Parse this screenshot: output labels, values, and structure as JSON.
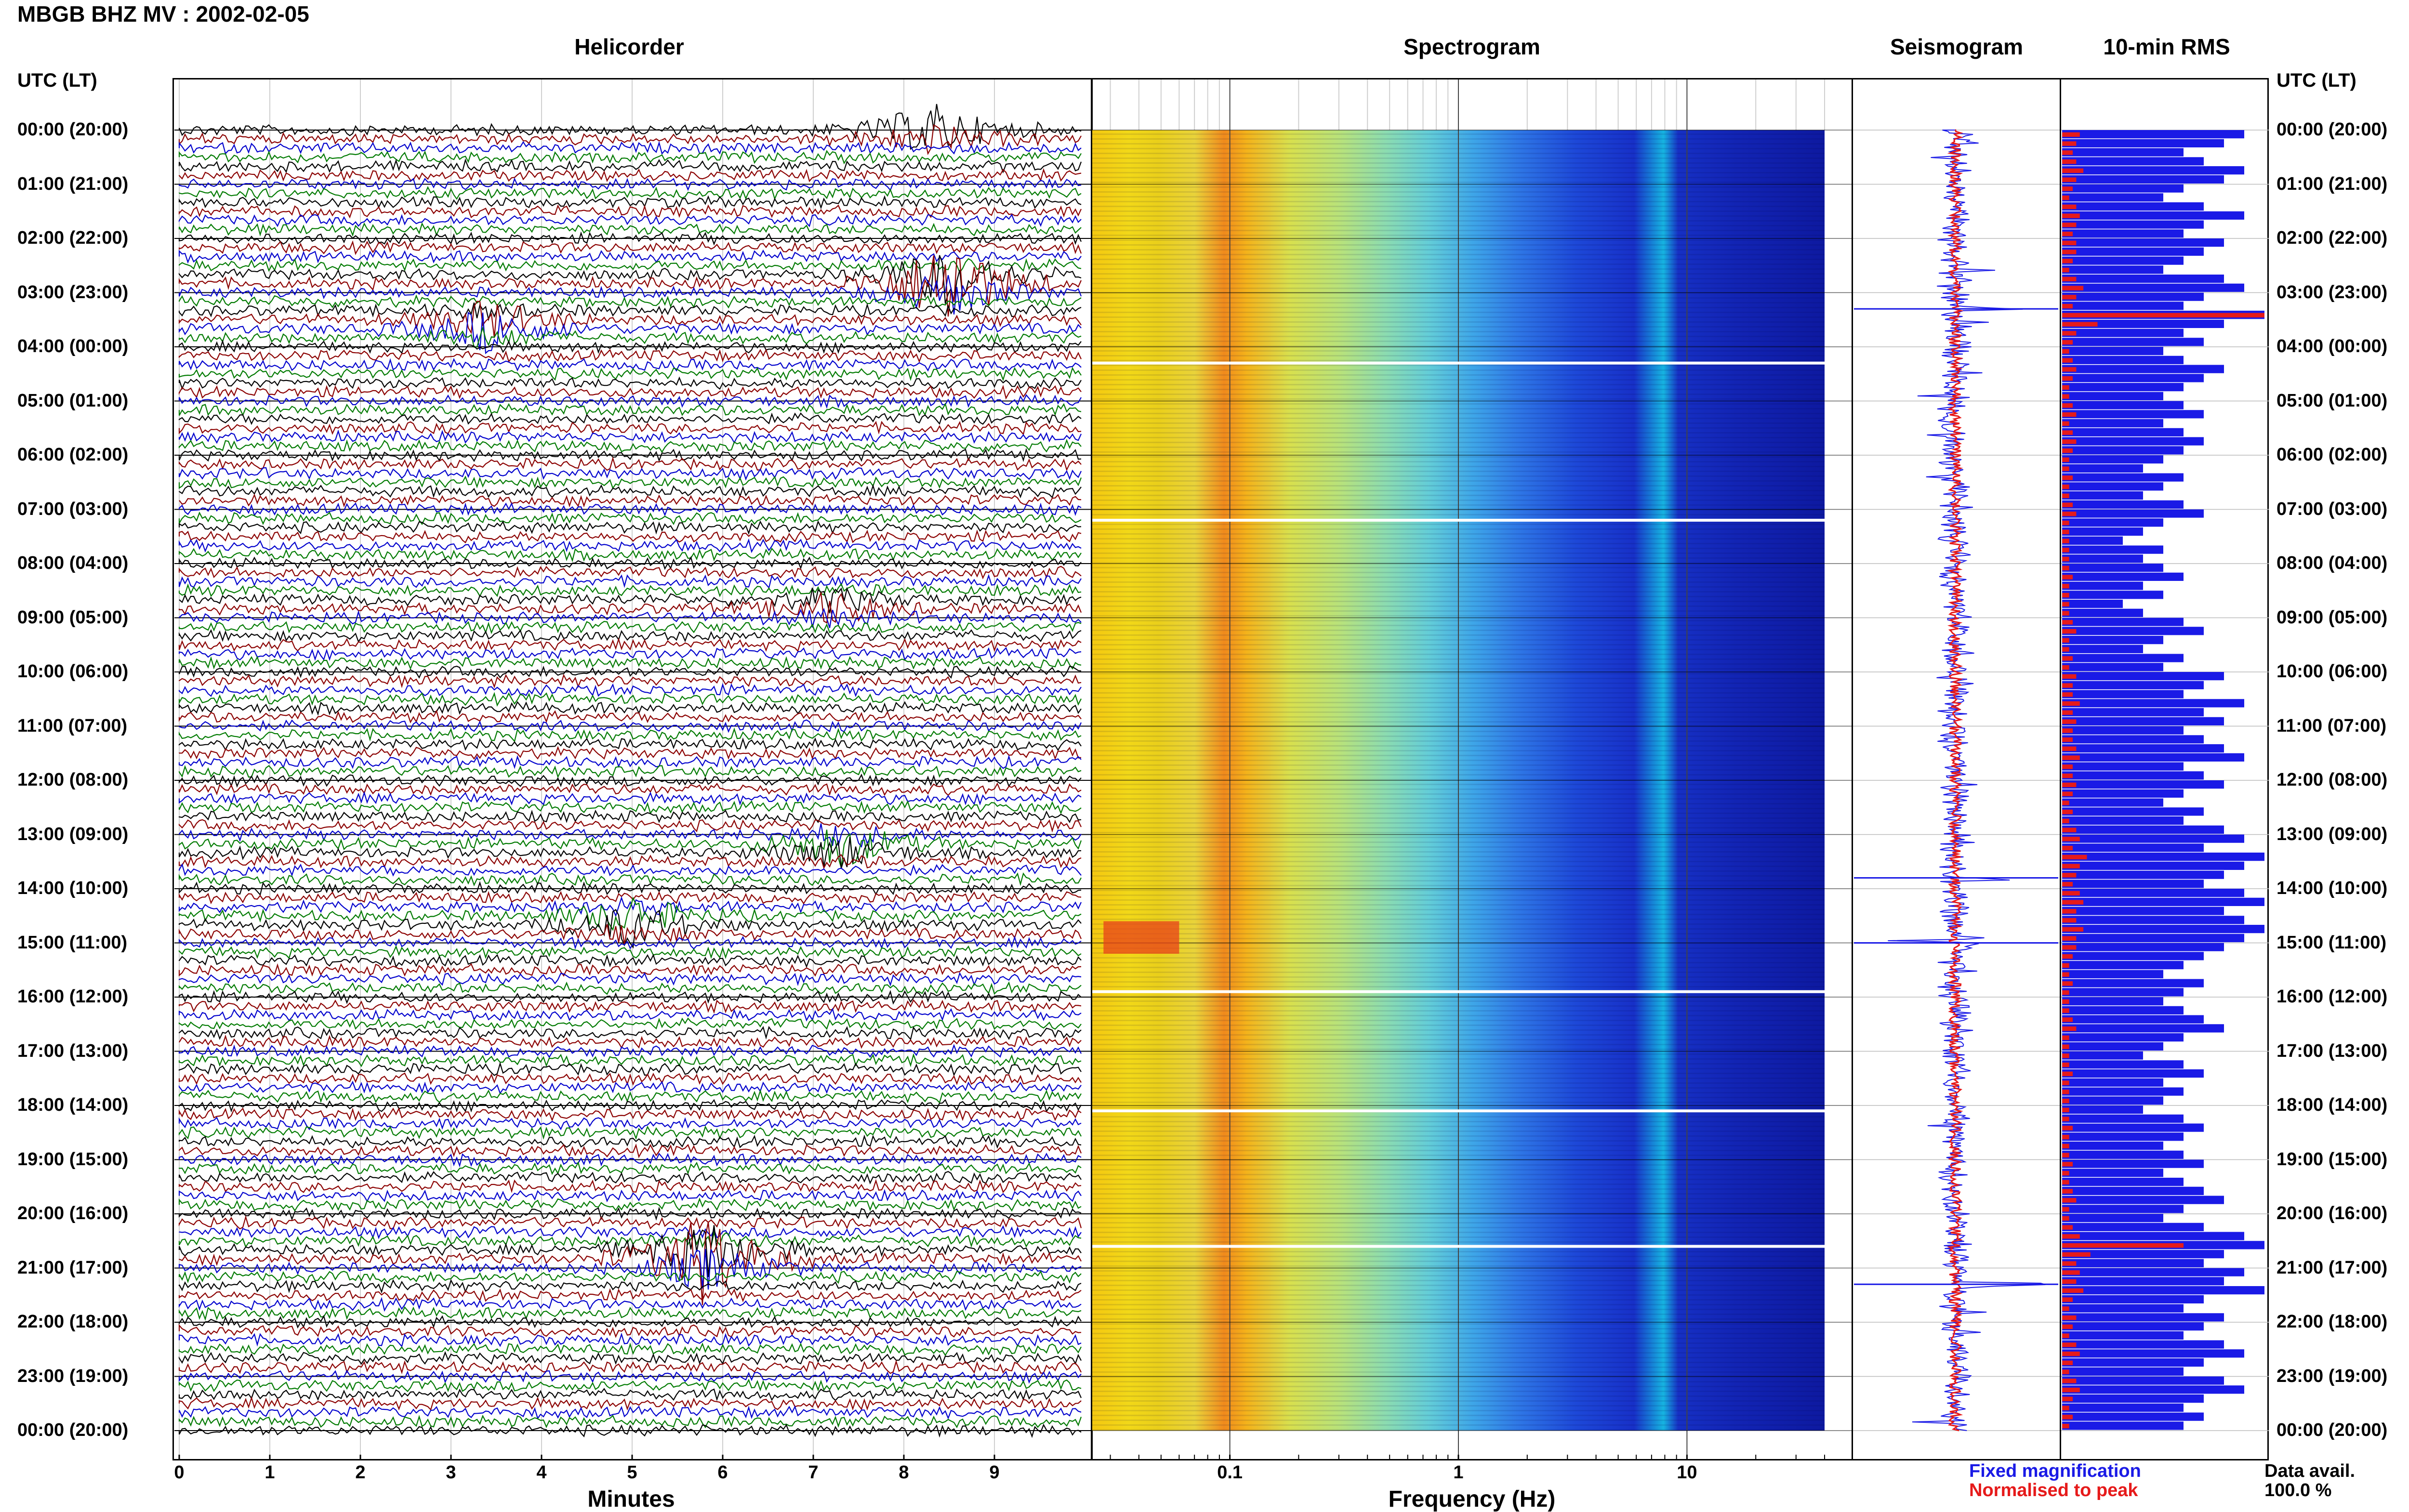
{
  "title": "MBGB BHZ MV : 2002-02-05",
  "panels": {
    "helicorder": "Helicorder",
    "spectrogram": "Spectrogram",
    "seismogram": "Seismogram",
    "rms": "10-min RMS"
  },
  "time_header": "UTC (LT)",
  "hours": [
    "00:00 (20:00)",
    "01:00 (21:00)",
    "02:00 (22:00)",
    "03:00 (23:00)",
    "04:00 (00:00)",
    "05:00 (01:00)",
    "06:00 (02:00)",
    "07:00 (03:00)",
    "08:00 (04:00)",
    "09:00 (05:00)",
    "10:00 (06:00)",
    "11:00 (07:00)",
    "12:00 (08:00)",
    "13:00 (09:00)",
    "14:00 (10:00)",
    "15:00 (11:00)",
    "16:00 (12:00)",
    "17:00 (13:00)",
    "18:00 (14:00)",
    "19:00 (15:00)",
    "20:00 (16:00)",
    "21:00 (17:00)",
    "22:00 (18:00)",
    "23:00 (19:00)",
    "00:00 (20:00)"
  ],
  "legend": {
    "fixed": "Fixed magnification",
    "normalised": "Normalised to peak",
    "avail_label": "Data avail.",
    "avail_value": "100.0 %"
  },
  "colors": {
    "trace_cycle": [
      "#000000",
      "#8b0000",
      "#0000cd",
      "#007a00"
    ],
    "fixed": "#1a1ae6",
    "normalised": "#e61a1a"
  },
  "chart_data": [
    {
      "type": "line",
      "name": "helicorder",
      "xlabel": "Minutes",
      "x_ticks": [
        "0",
        "1",
        "2",
        "3",
        "4",
        "5",
        "6",
        "7",
        "8",
        "9"
      ],
      "xlim": [
        0,
        10
      ],
      "rows_per_hour": 6,
      "events": [
        {
          "hour": 0.0,
          "minute": 8.3,
          "amp": 3
        },
        {
          "hour": 2.8,
          "minute": 8.5,
          "amp": 6
        },
        {
          "hour": 3.6,
          "minute": 3.4,
          "amp": 3
        },
        {
          "hour": 8.8,
          "minute": 7.2,
          "amp": 2
        },
        {
          "hour": 13.2,
          "minute": 7.3,
          "amp": 3
        },
        {
          "hour": 14.6,
          "minute": 5.0,
          "amp": 3
        },
        {
          "hour": 20.8,
          "minute": 5.8,
          "amp": 6
        }
      ]
    },
    {
      "type": "heatmap",
      "name": "spectrogram",
      "xlabel": "Frequency (Hz)",
      "x_scale": "log",
      "x_ticks": [
        "0.1",
        "1",
        "10"
      ],
      "xlim": [
        0.025,
        40
      ],
      "data_gaps_hours": [
        4.3,
        7.2,
        15.9,
        18.1,
        20.6
      ]
    },
    {
      "type": "line",
      "name": "seismogram",
      "spikes_hours": [
        3.3,
        13.8,
        15.0,
        21.3
      ]
    },
    {
      "type": "bar",
      "name": "10-min RMS",
      "orientation": "horizontal",
      "intervals": 144,
      "rms_blue_sample": [
        0.9,
        0.8,
        0.6,
        0.7,
        0.9,
        0.8,
        0.6,
        0.5,
        0.7,
        0.9,
        0.7,
        0.6,
        0.8,
        0.7,
        0.6,
        0.5,
        0.8,
        0.9,
        0.7,
        0.6,
        1.0,
        0.8,
        0.6,
        0.7,
        0.5,
        0.6,
        0.8,
        0.7,
        0.6,
        0.5,
        0.6,
        0.7,
        0.5,
        0.6,
        0.7,
        0.6,
        0.5,
        0.4,
        0.6,
        0.5,
        0.4,
        0.6,
        0.7,
        0.5,
        0.4,
        0.3,
        0.5,
        0.4,
        0.5,
        0.6,
        0.4,
        0.5,
        0.3,
        0.4,
        0.6,
        0.7,
        0.5,
        0.4,
        0.6,
        0.5,
        0.8,
        0.7,
        0.6,
        0.9,
        0.7,
        0.8,
        0.6,
        0.7,
        0.8,
        0.9,
        0.6,
        0.7,
        0.8,
        0.6,
        0.5,
        0.7,
        0.6,
        0.8,
        0.9,
        0.7,
        1.0,
        0.9,
        0.8,
        0.7,
        0.9,
        1.0,
        0.8,
        0.9,
        1.0,
        0.9,
        0.8,
        0.7,
        0.6,
        0.5,
        0.7,
        0.6,
        0.5,
        0.6,
        0.7,
        0.8,
        0.6,
        0.5,
        0.4,
        0.6,
        0.7,
        0.5,
        0.6,
        0.5,
        0.4,
        0.6,
        0.7,
        0.6,
        0.5,
        0.6,
        0.7,
        0.5,
        0.6,
        0.7,
        0.8,
        0.6,
        0.5,
        0.7,
        0.9,
        1.0,
        0.8,
        0.7,
        0.9,
        0.8,
        1.0,
        0.7,
        0.6,
        0.8,
        0.7,
        0.6,
        0.8,
        0.9,
        0.7,
        0.6,
        0.8,
        0.9,
        0.7,
        0.6,
        0.7,
        0.6
      ],
      "rms_red_sample": [
        0.25,
        0.2,
        0.15,
        0.2,
        0.3,
        0.2,
        0.15,
        0.1,
        0.2,
        0.25,
        0.2,
        0.15,
        0.2,
        0.2,
        0.15,
        0.1,
        0.2,
        0.3,
        0.2,
        0.15,
        1.0,
        0.5,
        0.2,
        0.15,
        0.1,
        0.15,
        0.2,
        0.15,
        0.1,
        0.1,
        0.15,
        0.2,
        0.1,
        0.15,
        0.2,
        0.15,
        0.1,
        0.1,
        0.15,
        0.1,
        0.1,
        0.15,
        0.2,
        0.1,
        0.1,
        0.1,
        0.1,
        0.1,
        0.1,
        0.15,
        0.1,
        0.1,
        0.1,
        0.1,
        0.15,
        0.2,
        0.1,
        0.1,
        0.15,
        0.1,
        0.2,
        0.15,
        0.15,
        0.25,
        0.15,
        0.2,
        0.15,
        0.15,
        0.2,
        0.25,
        0.15,
        0.15,
        0.2,
        0.15,
        0.1,
        0.15,
        0.1,
        0.2,
        0.25,
        0.15,
        0.35,
        0.25,
        0.2,
        0.15,
        0.25,
        0.3,
        0.2,
        0.2,
        0.3,
        0.2,
        0.2,
        0.15,
        0.1,
        0.1,
        0.15,
        0.1,
        0.1,
        0.1,
        0.15,
        0.2,
        0.1,
        0.1,
        0.1,
        0.1,
        0.15,
        0.1,
        0.1,
        0.1,
        0.1,
        0.1,
        0.15,
        0.1,
        0.1,
        0.1,
        0.15,
        0.1,
        0.1,
        0.15,
        0.2,
        0.1,
        0.1,
        0.15,
        0.25,
        0.6,
        0.4,
        0.2,
        0.25,
        0.2,
        0.3,
        0.15,
        0.1,
        0.2,
        0.15,
        0.1,
        0.2,
        0.25,
        0.15,
        0.1,
        0.2,
        0.25,
        0.15,
        0.1,
        0.15,
        0.1
      ]
    }
  ]
}
